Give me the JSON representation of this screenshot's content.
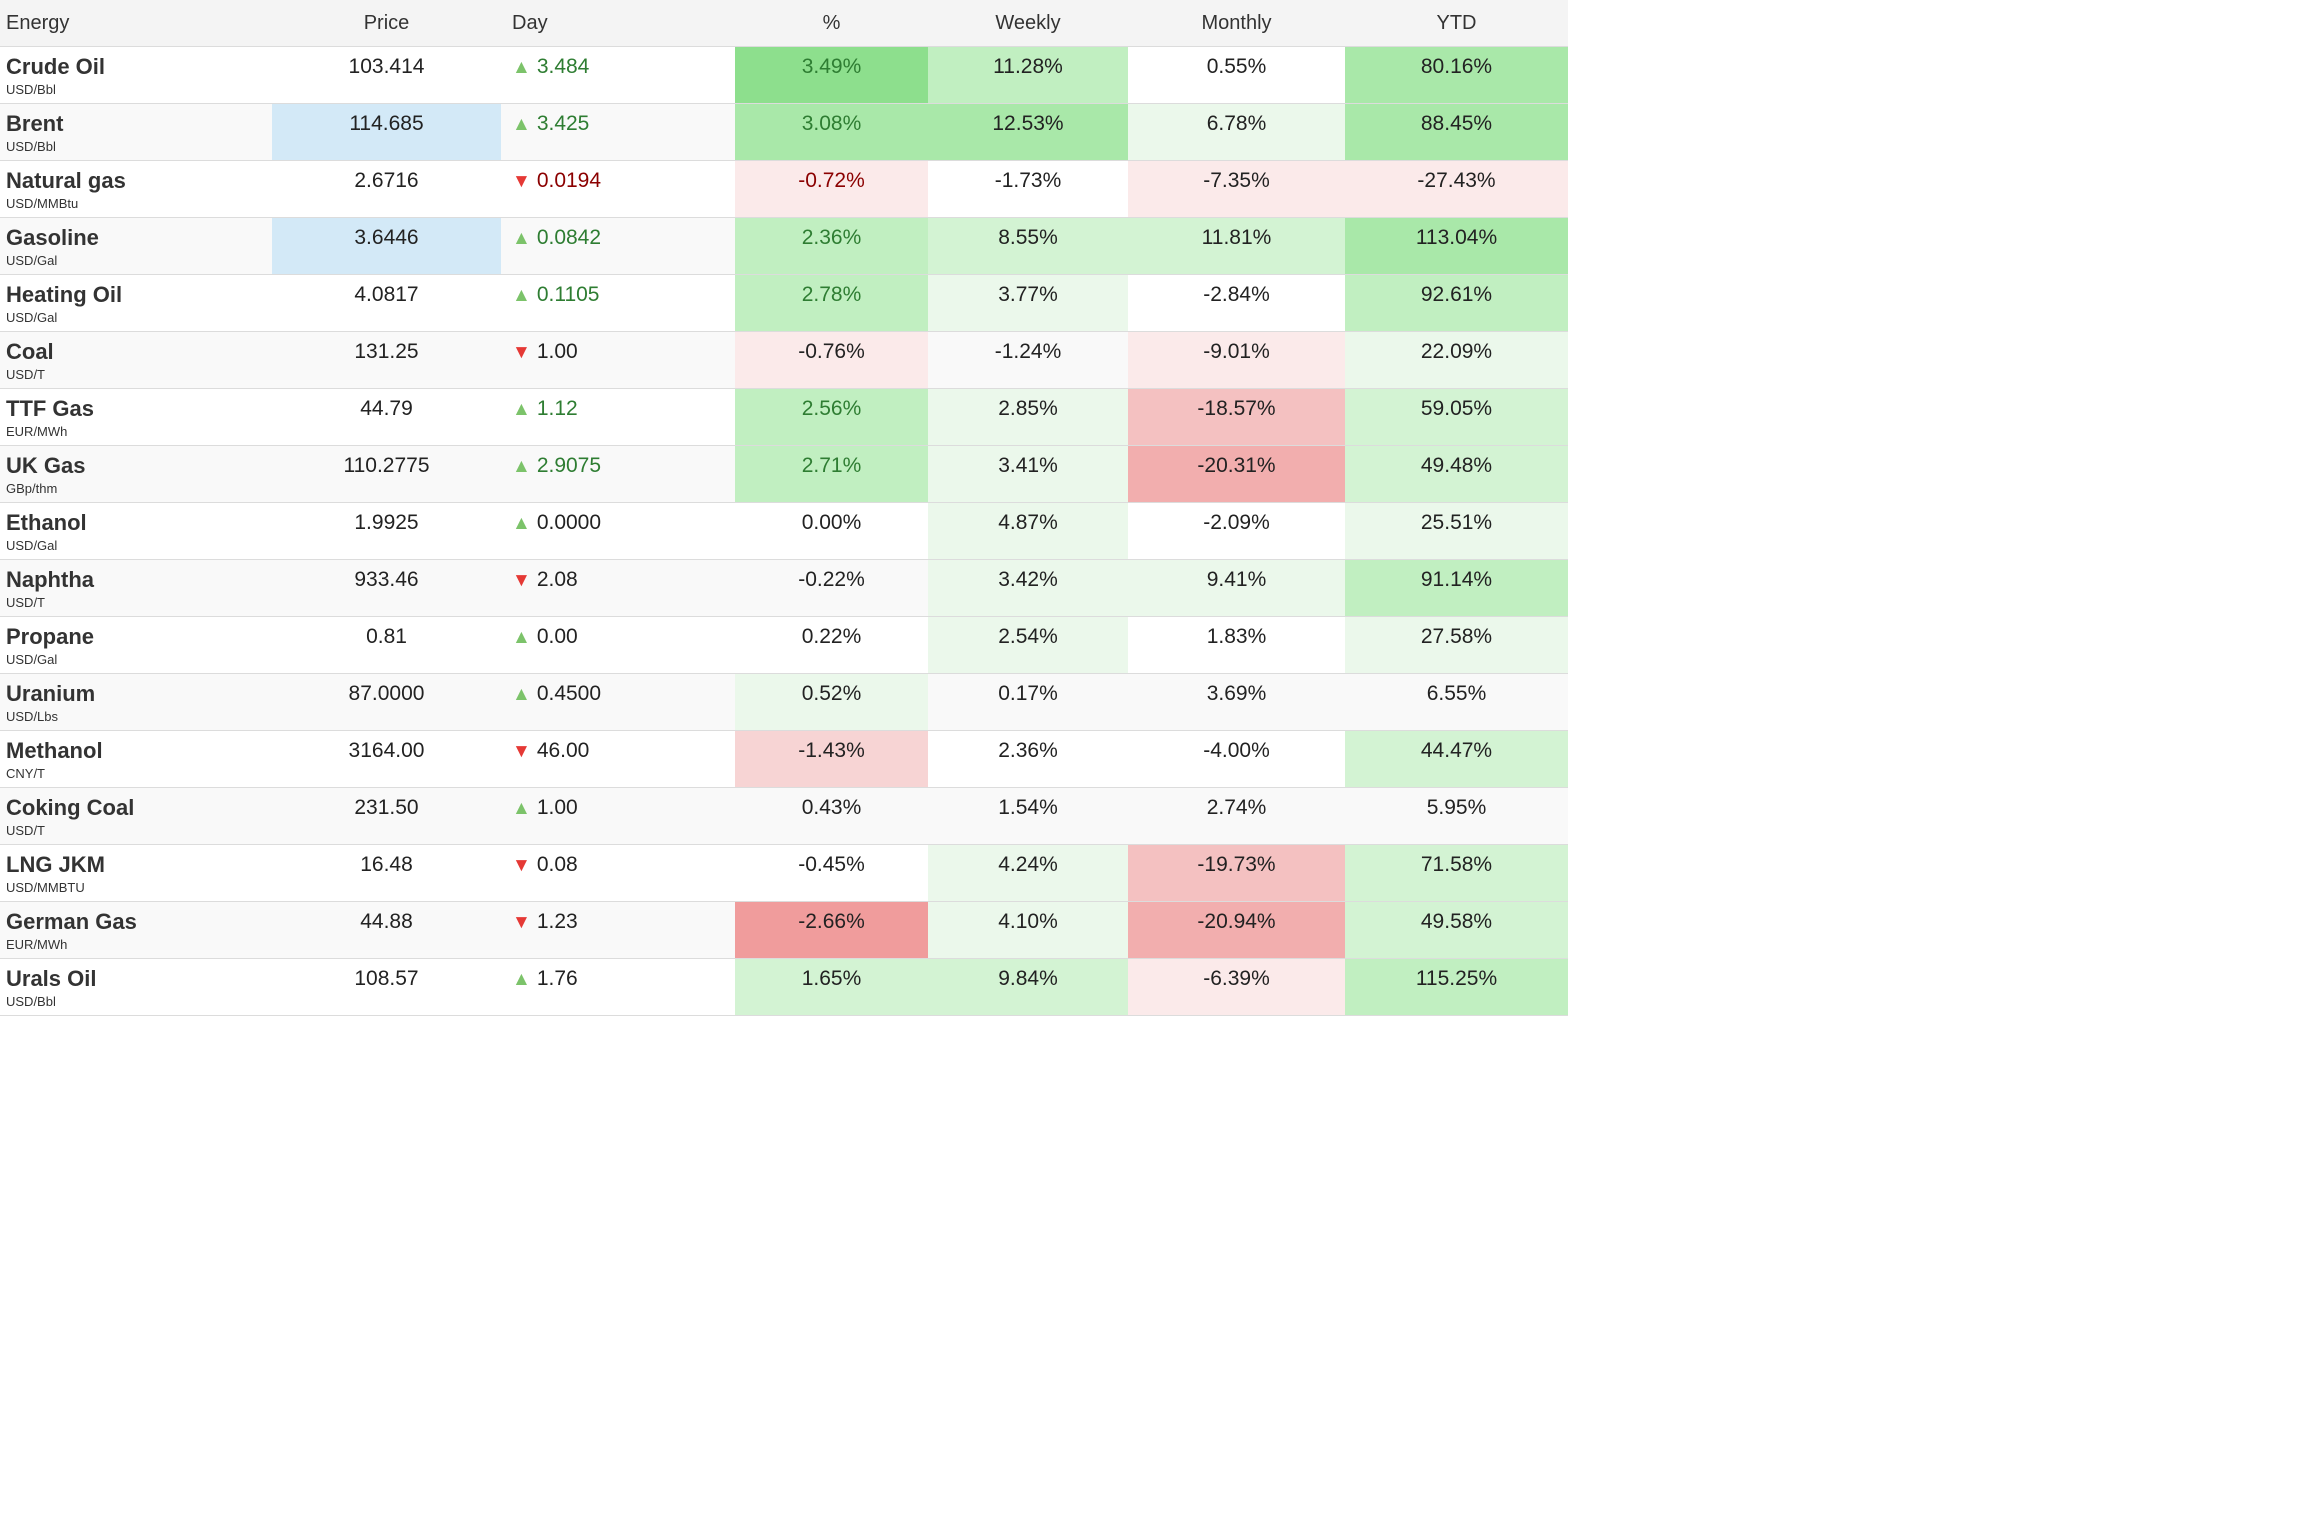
{
  "headers": {
    "name": "Energy",
    "price": "Price",
    "day": "Day",
    "pct": "%",
    "weekly": "Weekly",
    "monthly": "Monthly",
    "ytd": "YTD"
  },
  "rows": [
    {
      "name": "Crude Oil",
      "unit": "USD/Bbl",
      "price": "103.414",
      "day": "3.484",
      "dir": "up",
      "pct": "3.49%",
      "weekly": "11.28%",
      "monthly": "0.55%",
      "ytd": "80.16%"
    },
    {
      "name": "Brent",
      "unit": "USD/Bbl",
      "price": "114.685",
      "day": "3.425",
      "dir": "up",
      "pct": "3.08%",
      "weekly": "12.53%",
      "monthly": "6.78%",
      "ytd": "88.45%"
    },
    {
      "name": "Natural gas",
      "unit": "USD/MMBtu",
      "price": "2.6716",
      "day": "0.0194",
      "dir": "down",
      "pct": "-0.72%",
      "weekly": "-1.73%",
      "monthly": "-7.35%",
      "ytd": "-27.43%"
    },
    {
      "name": "Gasoline",
      "unit": "USD/Gal",
      "price": "3.6446",
      "day": "0.0842",
      "dir": "up",
      "pct": "2.36%",
      "weekly": "8.55%",
      "monthly": "11.81%",
      "ytd": "113.04%"
    },
    {
      "name": "Heating Oil",
      "unit": "USD/Gal",
      "price": "4.0817",
      "day": "0.1105",
      "dir": "up",
      "pct": "2.78%",
      "weekly": "3.77%",
      "monthly": "-2.84%",
      "ytd": "92.61%"
    },
    {
      "name": "Coal",
      "unit": "USD/T",
      "price": "131.25",
      "day": "1.00",
      "dir": "down",
      "pct": "-0.76%",
      "weekly": "-1.24%",
      "monthly": "-9.01%",
      "ytd": "22.09%"
    },
    {
      "name": "TTF Gas",
      "unit": "EUR/MWh",
      "price": "44.79",
      "day": "1.12",
      "dir": "up",
      "pct": "2.56%",
      "weekly": "2.85%",
      "monthly": "-18.57%",
      "ytd": "59.05%"
    },
    {
      "name": "UK Gas",
      "unit": "GBp/thm",
      "price": "110.2775",
      "day": "2.9075",
      "dir": "up",
      "pct": "2.71%",
      "weekly": "3.41%",
      "monthly": "-20.31%",
      "ytd": "49.48%"
    },
    {
      "name": "Ethanol",
      "unit": "USD/Gal",
      "price": "1.9925",
      "day": "0.0000",
      "dir": "up",
      "pct": "0.00%",
      "weekly": "4.87%",
      "monthly": "-2.09%",
      "ytd": "25.51%"
    },
    {
      "name": "Naphtha",
      "unit": "USD/T",
      "price": "933.46",
      "day": "2.08",
      "dir": "down",
      "pct": "-0.22%",
      "weekly": "3.42%",
      "monthly": "9.41%",
      "ytd": "91.14%"
    },
    {
      "name": "Propane",
      "unit": "USD/Gal",
      "price": "0.81",
      "day": "0.00",
      "dir": "up",
      "pct": "0.22%",
      "weekly": "2.54%",
      "monthly": "1.83%",
      "ytd": "27.58%"
    },
    {
      "name": "Uranium",
      "unit": "USD/Lbs",
      "price": "87.0000",
      "day": "0.4500",
      "dir": "up",
      "pct": "0.52%",
      "weekly": "0.17%",
      "monthly": "3.69%",
      "ytd": "6.55%"
    },
    {
      "name": "Methanol",
      "unit": "CNY/T",
      "price": "3164.00",
      "day": "46.00",
      "dir": "down",
      "pct": "-1.43%",
      "weekly": "2.36%",
      "monthly": "-4.00%",
      "ytd": "44.47%"
    },
    {
      "name": "Coking Coal",
      "unit": "USD/T",
      "price": "231.50",
      "day": "1.00",
      "dir": "up",
      "pct": "0.43%",
      "weekly": "1.54%",
      "monthly": "2.74%",
      "ytd": "5.95%"
    },
    {
      "name": "LNG JKM",
      "unit": "USD/MMBTU",
      "price": "16.48",
      "day": "0.08",
      "dir": "down",
      "pct": "-0.45%",
      "weekly": "4.24%",
      "monthly": "-19.73%",
      "ytd": "71.58%"
    },
    {
      "name": "German Gas",
      "unit": "EUR/MWh",
      "price": "44.88",
      "day": "1.23",
      "dir": "down",
      "pct": "-2.66%",
      "weekly": "4.10%",
      "monthly": "-20.94%",
      "ytd": "49.58%"
    },
    {
      "name": "Urals Oil",
      "unit": "USD/Bbl",
      "price": "108.57",
      "day": "1.76",
      "dir": "up",
      "pct": "1.65%",
      "weekly": "9.84%",
      "monthly": "-6.39%",
      "ytd": "115.25%"
    }
  ]
}
